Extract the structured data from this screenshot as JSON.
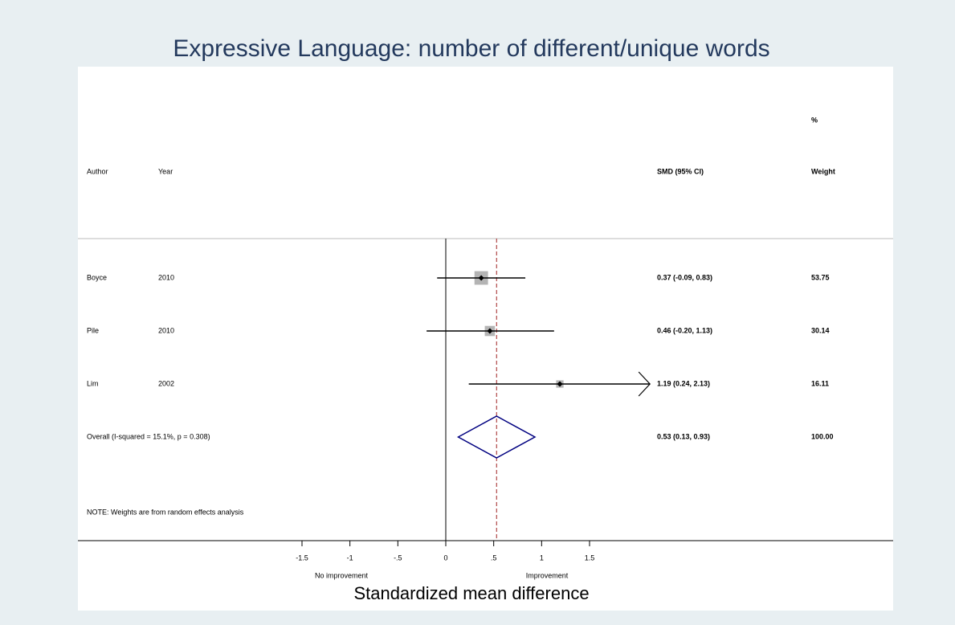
{
  "chart_data": {
    "type": "forest",
    "title": "Expressive Language: number of different/unique words",
    "x_label": "Standardized mean difference",
    "left_note": "No improvement",
    "right_note": "Improvement",
    "headers": {
      "author": "Author",
      "year": "Year",
      "estimate": "SMD (95% CI)",
      "weight_unit": "%",
      "weight": "Weight"
    },
    "authors": [
      "Boyce",
      "Pile",
      "Lim"
    ],
    "years": [
      "2010",
      "2010",
      "2002"
    ],
    "values": [
      0.37,
      0.46,
      1.19
    ],
    "lower": [
      -0.09,
      -0.2,
      0.24
    ],
    "upper": [
      0.83,
      1.13,
      2.13
    ],
    "value_labels": [
      "0.37 (-0.09, 0.83)",
      "0.46 (-0.20, 1.13)",
      "1.19 (0.24, 2.13)"
    ],
    "weights": [
      53.75,
      30.14,
      16.11
    ],
    "overall": {
      "label": "Overall  (I-squared = 15.1%, p = 0.308)",
      "value": 0.53,
      "lower": 0.13,
      "upper": 0.93,
      "value_label": "0.53 (0.13, 0.93)",
      "weight": {
        "value": 100,
        "label": "100.00"
      }
    },
    "note": "NOTE: Weights are from random effects analysis",
    "null_value": 0,
    "xlim": [
      -1.5,
      1.5
    ],
    "xticks": [
      -1.5,
      -1,
      {
        "value": -0.5,
        "label": "-.5"
      },
      0,
      {
        "value": 0.5,
        "label": ".5"
      },
      1,
      1.5
    ],
    "box_color": "#b4b4b4",
    "diamond_color": "#000080",
    "overall_line_color": "#a02020"
  }
}
